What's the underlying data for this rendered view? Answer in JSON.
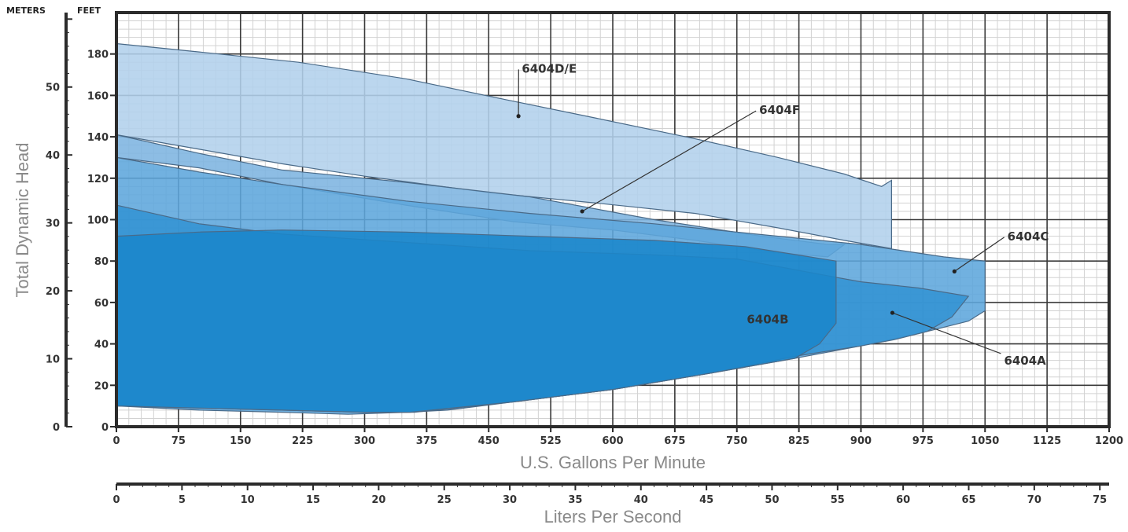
{
  "chart_data": {
    "type": "area",
    "title": "",
    "xlabel": "U.S. Gallons Per Minute",
    "ylabel": "Total Dynamic Head",
    "x2label": "Liters Per Second",
    "y_unit_feet": "FEET",
    "y_unit_meters": "METERS",
    "xlim": [
      0,
      1200
    ],
    "ylim": [
      0,
      200
    ],
    "x_ticks": [
      0,
      75,
      150,
      225,
      300,
      375,
      450,
      525,
      600,
      675,
      750,
      825,
      900,
      975,
      1050,
      1125,
      1200
    ],
    "y_ticks_feet": [
      0,
      20,
      40,
      60,
      80,
      100,
      120,
      140,
      160,
      180
    ],
    "y_ticks_meters": [
      0,
      10,
      20,
      30,
      40,
      50
    ],
    "lps_ticks": [
      0,
      5,
      10,
      15,
      20,
      25,
      30,
      35,
      40,
      45,
      50,
      55,
      60,
      65,
      70,
      75
    ],
    "grid": true,
    "series": [
      {
        "name": "6404D/E",
        "color": "#b2d0ec",
        "label_pos": [
          490,
          171
        ],
        "pointer": [
          486,
          150
        ],
        "outline": [
          [
            0,
            185
          ],
          [
            100,
            181
          ],
          [
            220,
            176
          ],
          [
            350,
            168
          ],
          [
            470,
            158
          ],
          [
            580,
            149
          ],
          [
            700,
            139
          ],
          [
            800,
            130
          ],
          [
            880,
            122
          ],
          [
            925,
            116
          ],
          [
            937,
            119
          ],
          [
            937,
            86
          ],
          [
            880,
            90
          ],
          [
            800,
            96
          ],
          [
            700,
            103
          ],
          [
            580,
            108
          ],
          [
            450,
            113
          ],
          [
            300,
            121
          ],
          [
            200,
            127
          ],
          [
            100,
            134
          ],
          [
            0,
            141
          ]
        ]
      },
      {
        "name": "6404F",
        "color": "#7db4e0",
        "label_pos": [
          777,
          151
        ],
        "pointer": [
          563,
          104
        ],
        "outline": [
          [
            0,
            141
          ],
          [
            100,
            132
          ],
          [
            200,
            124
          ],
          [
            350,
            118
          ],
          [
            500,
            111
          ],
          [
            650,
            100
          ],
          [
            780,
            92
          ],
          [
            860,
            88
          ],
          [
            880,
            88
          ],
          [
            860,
            82
          ],
          [
            800,
            84
          ],
          [
            700,
            90
          ],
          [
            600,
            95
          ],
          [
            480,
            99
          ],
          [
            350,
            107
          ],
          [
            200,
            117
          ],
          [
            100,
            125
          ],
          [
            0,
            130
          ]
        ]
      },
      {
        "name": "6404C",
        "color": "#5da6dc",
        "label_pos": [
          1077,
          90
        ],
        "pointer": [
          1013,
          75
        ],
        "outline": [
          [
            0,
            130
          ],
          [
            100,
            123
          ],
          [
            200,
            117
          ],
          [
            350,
            109
          ],
          [
            500,
            103
          ],
          [
            650,
            98
          ],
          [
            800,
            92
          ],
          [
            900,
            88
          ],
          [
            1000,
            82
          ],
          [
            1050,
            80
          ],
          [
            1050,
            56
          ],
          [
            1030,
            51
          ],
          [
            970,
            45
          ],
          [
            900,
            39
          ],
          [
            820,
            33
          ],
          [
            720,
            26
          ],
          [
            600,
            18
          ],
          [
            480,
            12
          ],
          [
            400,
            8
          ],
          [
            350,
            7
          ],
          [
            280,
            6
          ],
          [
            200,
            7
          ],
          [
            100,
            8
          ],
          [
            0,
            10
          ]
        ]
      },
      {
        "name": "6404A",
        "color": "#3393d3",
        "label_pos": [
          1073,
          30
        ],
        "pointer": [
          938,
          55
        ],
        "outline": [
          [
            0,
            107
          ],
          [
            100,
            98
          ],
          [
            200,
            93
          ],
          [
            350,
            89
          ],
          [
            500,
            85
          ],
          [
            650,
            83
          ],
          [
            750,
            81
          ],
          [
            872,
            72
          ],
          [
            900,
            70
          ],
          [
            970,
            67
          ],
          [
            1030,
            63
          ],
          [
            1010,
            53
          ],
          [
            980,
            46
          ],
          [
            940,
            42
          ],
          [
            900,
            39
          ],
          [
            820,
            34
          ],
          [
            720,
            26
          ],
          [
            600,
            18
          ],
          [
            480,
            12
          ],
          [
            360,
            7
          ],
          [
            300,
            7
          ],
          [
            200,
            8
          ],
          [
            100,
            9
          ],
          [
            0,
            10
          ]
        ]
      },
      {
        "name": "6404B",
        "color": "#1a86cb",
        "label_pos": [
          762,
          50
        ],
        "pointer": null,
        "outline": [
          [
            0,
            92
          ],
          [
            100,
            94
          ],
          [
            200,
            95
          ],
          [
            350,
            94
          ],
          [
            500,
            92
          ],
          [
            650,
            90
          ],
          [
            760,
            87
          ],
          [
            870,
            80
          ],
          [
            870,
            50
          ],
          [
            850,
            40
          ],
          [
            820,
            33
          ],
          [
            720,
            26
          ],
          [
            600,
            18
          ],
          [
            480,
            12
          ],
          [
            355,
            7
          ],
          [
            300,
            7
          ],
          [
            200,
            8
          ],
          [
            100,
            9
          ],
          [
            0,
            10
          ]
        ]
      }
    ]
  }
}
